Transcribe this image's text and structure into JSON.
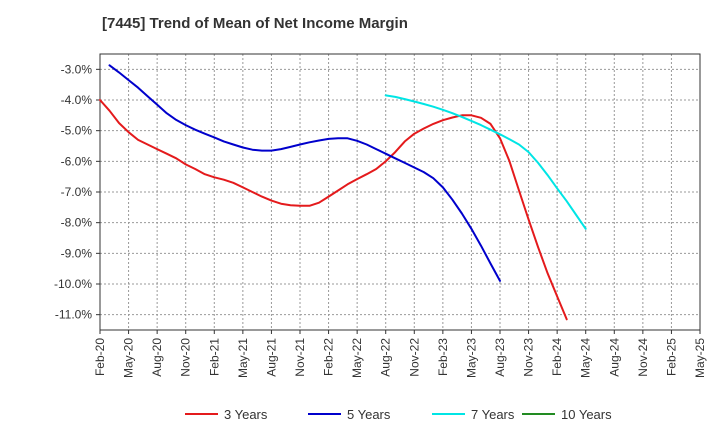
{
  "chart_data": {
    "type": "line",
    "title": "[7445]  Trend of Mean of Net Income Margin",
    "xlabel": "",
    "ylabel": "",
    "x_ticks": [
      "Feb-20",
      "May-20",
      "Aug-20",
      "Nov-20",
      "Feb-21",
      "May-21",
      "Aug-21",
      "Nov-21",
      "Feb-22",
      "May-22",
      "Aug-22",
      "Nov-22",
      "Feb-23",
      "May-23",
      "Aug-23",
      "Nov-23",
      "Feb-24",
      "May-24",
      "Aug-24",
      "Nov-24",
      "Feb-25",
      "May-25"
    ],
    "y_ticks": [
      "-3.0%",
      "-4.0%",
      "-5.0%",
      "-6.0%",
      "-7.0%",
      "-8.0%",
      "-9.0%",
      "-10.0%",
      "-11.0%"
    ],
    "ylim": [
      -11.5,
      -2.5
    ],
    "grid": true,
    "legend_position": "bottom",
    "series": [
      {
        "name": "3 Years",
        "color": "#e41a1c",
        "points": [
          [
            "Feb-20",
            -4.0
          ],
          [
            "Mar-20",
            -4.35
          ],
          [
            "Apr-20",
            -4.75
          ],
          [
            "May-20",
            -5.05
          ],
          [
            "Jun-20",
            -5.3
          ],
          [
            "Jul-20",
            -5.45
          ],
          [
            "Aug-20",
            -5.6
          ],
          [
            "Sep-20",
            -5.75
          ],
          [
            "Oct-20",
            -5.9
          ],
          [
            "Nov-20",
            -6.1
          ],
          [
            "Dec-20",
            -6.25
          ],
          [
            "Jan-21",
            -6.42
          ],
          [
            "Feb-21",
            -6.52
          ],
          [
            "Mar-21",
            -6.6
          ],
          [
            "Apr-21",
            -6.7
          ],
          [
            "May-21",
            -6.85
          ],
          [
            "Jun-21",
            -7.0
          ],
          [
            "Jul-21",
            -7.15
          ],
          [
            "Aug-21",
            -7.28
          ],
          [
            "Sep-21",
            -7.38
          ],
          [
            "Oct-21",
            -7.43
          ],
          [
            "Nov-21",
            -7.45
          ],
          [
            "Dec-21",
            -7.45
          ],
          [
            "Jan-22",
            -7.35
          ],
          [
            "Feb-22",
            -7.15
          ],
          [
            "Mar-22",
            -6.95
          ],
          [
            "Apr-22",
            -6.75
          ],
          [
            "May-22",
            -6.58
          ],
          [
            "Jun-22",
            -6.42
          ],
          [
            "Jul-22",
            -6.25
          ],
          [
            "Aug-22",
            -6.0
          ],
          [
            "Sep-22",
            -5.7
          ],
          [
            "Oct-22",
            -5.35
          ],
          [
            "Nov-22",
            -5.1
          ],
          [
            "Dec-22",
            -4.93
          ],
          [
            "Jan-23",
            -4.78
          ],
          [
            "Feb-23",
            -4.66
          ],
          [
            "Mar-23",
            -4.57
          ],
          [
            "Apr-23",
            -4.5
          ],
          [
            "May-23",
            -4.5
          ],
          [
            "Jun-23",
            -4.58
          ],
          [
            "Jul-23",
            -4.78
          ],
          [
            "Aug-23",
            -5.25
          ],
          [
            "Sep-23",
            -6.0
          ],
          [
            "Oct-23",
            -6.95
          ],
          [
            "Nov-23",
            -7.9
          ],
          [
            "Dec-23",
            -8.8
          ],
          [
            "Jan-24",
            -9.65
          ],
          [
            "Feb-24",
            -10.4
          ],
          [
            "Mar-24",
            -11.15
          ]
        ]
      },
      {
        "name": "5 Years",
        "color": "#0000cc",
        "points": [
          [
            "Mar-20",
            -2.87
          ],
          [
            "Apr-20",
            -3.1
          ],
          [
            "May-20",
            -3.35
          ],
          [
            "Jun-20",
            -3.6
          ],
          [
            "Jul-20",
            -3.88
          ],
          [
            "Aug-20",
            -4.15
          ],
          [
            "Sep-20",
            -4.43
          ],
          [
            "Oct-20",
            -4.65
          ],
          [
            "Nov-20",
            -4.82
          ],
          [
            "Dec-20",
            -4.97
          ],
          [
            "Jan-21",
            -5.1
          ],
          [
            "Feb-21",
            -5.22
          ],
          [
            "Mar-21",
            -5.35
          ],
          [
            "Apr-21",
            -5.45
          ],
          [
            "May-21",
            -5.55
          ],
          [
            "Jun-21",
            -5.62
          ],
          [
            "Jul-21",
            -5.65
          ],
          [
            "Aug-21",
            -5.65
          ],
          [
            "Sep-21",
            -5.6
          ],
          [
            "Oct-21",
            -5.53
          ],
          [
            "Nov-21",
            -5.45
          ],
          [
            "Dec-21",
            -5.38
          ],
          [
            "Jan-22",
            -5.32
          ],
          [
            "Feb-22",
            -5.27
          ],
          [
            "Mar-22",
            -5.25
          ],
          [
            "Apr-22",
            -5.25
          ],
          [
            "May-22",
            -5.33
          ],
          [
            "Jun-22",
            -5.45
          ],
          [
            "Jul-22",
            -5.6
          ],
          [
            "Aug-22",
            -5.75
          ],
          [
            "Sep-22",
            -5.9
          ],
          [
            "Oct-22",
            -6.05
          ],
          [
            "Nov-22",
            -6.2
          ],
          [
            "Dec-22",
            -6.35
          ],
          [
            "Jan-23",
            -6.55
          ],
          [
            "Feb-23",
            -6.85
          ],
          [
            "Mar-23",
            -7.25
          ],
          [
            "Apr-23",
            -7.7
          ],
          [
            "May-23",
            -8.2
          ],
          [
            "Jun-23",
            -8.75
          ],
          [
            "Jul-23",
            -9.33
          ],
          [
            "Aug-23",
            -9.9
          ]
        ]
      },
      {
        "name": "7 Years",
        "color": "#00e5e5",
        "points": [
          [
            "Aug-22",
            -3.85
          ],
          [
            "Sep-22",
            -3.9
          ],
          [
            "Oct-22",
            -3.97
          ],
          [
            "Nov-22",
            -4.05
          ],
          [
            "Dec-22",
            -4.13
          ],
          [
            "Jan-23",
            -4.22
          ],
          [
            "Feb-23",
            -4.32
          ],
          [
            "Mar-23",
            -4.43
          ],
          [
            "Apr-23",
            -4.55
          ],
          [
            "May-23",
            -4.68
          ],
          [
            "Jun-23",
            -4.82
          ],
          [
            "Jul-23",
            -4.97
          ],
          [
            "Aug-23",
            -5.12
          ],
          [
            "Sep-23",
            -5.28
          ],
          [
            "Oct-23",
            -5.45
          ],
          [
            "Nov-23",
            -5.7
          ],
          [
            "Dec-23",
            -6.05
          ],
          [
            "Jan-24",
            -6.45
          ],
          [
            "Feb-24",
            -6.88
          ],
          [
            "Mar-24",
            -7.3
          ],
          [
            "Apr-24",
            -7.75
          ],
          [
            "May-24",
            -8.2
          ]
        ]
      },
      {
        "name": "10 Years",
        "color": "#228b22",
        "points": []
      }
    ]
  }
}
